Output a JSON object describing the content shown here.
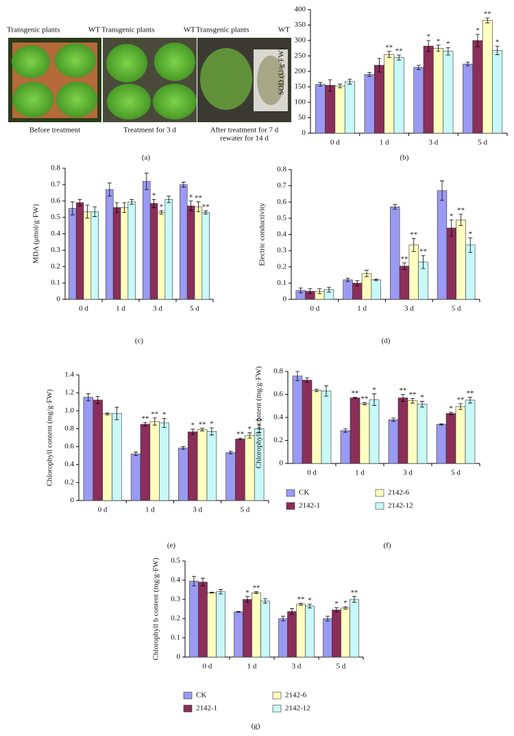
{
  "panel_a": {
    "label": "(a)",
    "photos": [
      {
        "left": "Transgenic plants",
        "right": "WT",
        "caption": [
          "Before treatment"
        ]
      },
      {
        "left": "Transgenic plants",
        "right": "WT",
        "caption": [
          "Treatment for 3 d"
        ]
      },
      {
        "left": "Transgenic plants",
        "right": "WT",
        "caption": [
          "After treatment for 7 d",
          "rewater for 14 d"
        ]
      }
    ]
  },
  "chart_data": [
    {
      "type": "bar",
      "label": "(b)",
      "y_label": "SOD (U/g·FW)",
      "categories": [
        "0 d",
        "1 d",
        "3 d",
        "5 d"
      ],
      "ylim": [
        0,
        400
      ],
      "yticks": [
        0,
        50,
        100,
        150,
        200,
        250,
        300,
        350,
        400
      ],
      "series": [
        {
          "name": "CK",
          "color": "#9a9af2",
          "values": [
            158,
            190,
            213,
            224
          ],
          "errors": [
            6,
            6,
            7,
            6
          ],
          "stars": [
            null,
            null,
            null,
            null
          ]
        },
        {
          "name": "2142-1",
          "color": "#8b2e5a",
          "values": [
            155,
            220,
            282,
            300
          ],
          "errors": [
            18,
            22,
            18,
            20
          ],
          "stars": [
            null,
            null,
            "*",
            "*"
          ]
        },
        {
          "name": "2142-6",
          "color": "#ffffc0",
          "values": [
            153,
            255,
            275,
            365
          ],
          "errors": [
            6,
            10,
            10,
            8
          ],
          "stars": [
            null,
            "**",
            "*",
            "**"
          ]
        },
        {
          "name": "2142-12",
          "color": "#c8f8f8",
          "values": [
            167,
            245,
            265,
            268
          ],
          "errors": [
            8,
            8,
            12,
            14
          ],
          "stars": [
            null,
            "**",
            "*",
            "*"
          ]
        }
      ]
    },
    {
      "type": "bar",
      "label": "(c)",
      "y_label": "MDA (μmol/g·FW)",
      "categories": [
        "0 d",
        "1 d",
        "3 d",
        "5 d"
      ],
      "ylim": [
        0,
        0.8
      ],
      "yticks": [
        0,
        0.1,
        0.2,
        0.3,
        0.4,
        0.5,
        0.6,
        0.7,
        0.8
      ],
      "series": [
        {
          "name": "CK",
          "color": "#9a9af2",
          "values": [
            0.555,
            0.67,
            0.72,
            0.7
          ],
          "errors": [
            0.04,
            0.04,
            0.05,
            0.015
          ],
          "stars": [
            null,
            null,
            null,
            null
          ]
        },
        {
          "name": "2142-1",
          "color": "#8b2e5a",
          "values": [
            0.59,
            0.56,
            0.585,
            0.57
          ],
          "errors": [
            0.02,
            0.03,
            0.025,
            0.03
          ],
          "stars": [
            null,
            null,
            "*",
            "*"
          ]
        },
        {
          "name": "2142-6",
          "color": "#ffffc0",
          "values": [
            0.535,
            0.56,
            0.53,
            0.565
          ],
          "errors": [
            0.04,
            0.03,
            0.01,
            0.03
          ],
          "stars": [
            null,
            null,
            "*",
            "**"
          ]
        },
        {
          "name": "2142-12",
          "color": "#c8f8f8",
          "values": [
            0.535,
            0.595,
            0.61,
            0.53
          ],
          "errors": [
            0.03,
            0.015,
            0.02,
            0.01
          ],
          "stars": [
            null,
            null,
            null,
            "**"
          ]
        }
      ]
    },
    {
      "type": "bar",
      "label": "(d)",
      "y_label": "Electric conductivity",
      "categories": [
        "0 d",
        "1 d",
        "3 d",
        "5 d"
      ],
      "ylim": [
        0,
        0.8
      ],
      "yticks": [
        0,
        0.1,
        0.2,
        0.3,
        0.4,
        0.5,
        0.6,
        0.7,
        0.8
      ],
      "series": [
        {
          "name": "CK",
          "color": "#9a9af2",
          "values": [
            0.055,
            0.12,
            0.57,
            0.67
          ],
          "errors": [
            0.015,
            0.01,
            0.015,
            0.06
          ],
          "stars": [
            null,
            null,
            null,
            null
          ]
        },
        {
          "name": "2142-1",
          "color": "#8b2e5a",
          "values": [
            0.05,
            0.1,
            0.205,
            0.44
          ],
          "errors": [
            0.015,
            0.015,
            0.02,
            0.05
          ],
          "stars": [
            null,
            null,
            "**",
            "*"
          ]
        },
        {
          "name": "2142-6",
          "color": "#ffffc0",
          "values": [
            0.05,
            0.16,
            0.335,
            0.49
          ],
          "errors": [
            0.015,
            0.02,
            0.04,
            0.035
          ],
          "stars": [
            null,
            null,
            "**",
            "**"
          ]
        },
        {
          "name": "2142-12",
          "color": "#c8f8f8",
          "values": [
            0.06,
            0.12,
            0.23,
            0.335
          ],
          "errors": [
            0.015,
            0.005,
            0.04,
            0.045
          ],
          "stars": [
            null,
            null,
            "**",
            "*"
          ]
        }
      ]
    },
    {
      "type": "bar",
      "label": "(e)",
      "y_label": "Chlorophyll content (mg/g·FW)",
      "categories": [
        "0 d",
        "1 d",
        "3 d",
        "5 d"
      ],
      "ylim": [
        0,
        1.4
      ],
      "yticks": [
        0,
        0.2,
        0.4,
        0.6,
        0.8,
        {
          "value": 1,
          "label": "1.0"
        },
        1.2,
        1.4
      ],
      "series": [
        {
          "name": "CK",
          "color": "#9a9af2",
          "values": [
            1.15,
            0.52,
            0.585,
            0.535
          ],
          "errors": [
            0.04,
            0.02,
            0.015,
            0.015
          ],
          "stars": [
            null,
            null,
            null,
            null
          ]
        },
        {
          "name": "2142-1",
          "color": "#8b2e5a",
          "values": [
            1.12,
            0.85,
            0.765,
            0.685
          ],
          "errors": [
            0.04,
            0.02,
            0.03,
            0.01
          ],
          "stars": [
            null,
            "**",
            "*",
            "**"
          ]
        },
        {
          "name": "2142-6",
          "color": "#ffffc0",
          "values": [
            0.965,
            0.88,
            0.79,
            0.725
          ],
          "errors": [
            0.01,
            0.04,
            0.015,
            0.03
          ],
          "stars": [
            null,
            "**",
            "**",
            "*"
          ]
        },
        {
          "name": "2142-12",
          "color": "#c8f8f8",
          "values": [
            0.97,
            0.865,
            0.77,
            0.8
          ],
          "errors": [
            0.07,
            0.05,
            0.04,
            0.04
          ],
          "stars": [
            null,
            "*",
            "*",
            "**"
          ]
        }
      ]
    },
    {
      "type": "bar",
      "label": "(f)",
      "y_label": "Chlorophyll a content (mg/g·FW)",
      "categories": [
        "0 d",
        "1 d",
        "3 d",
        "5 d"
      ],
      "ylim": [
        0,
        0.8
      ],
      "yticks": [
        0,
        0.2,
        0.4,
        0.6,
        0.8
      ],
      "legend": "bottom",
      "series": [
        {
          "name": "CK",
          "color": "#9a9af2",
          "values": [
            0.76,
            0.285,
            0.38,
            0.34
          ],
          "errors": [
            0.04,
            0.015,
            0.015,
            0.005
          ],
          "stars": [
            null,
            null,
            null,
            null
          ]
        },
        {
          "name": "2142-1",
          "color": "#8b2e5a",
          "values": [
            0.725,
            0.57,
            0.57,
            0.435
          ],
          "errors": [
            0.02,
            0.005,
            0.03,
            0.01
          ],
          "stars": [
            null,
            "**",
            "**",
            "*"
          ]
        },
        {
          "name": "2142-6",
          "color": "#ffffc0",
          "values": [
            0.635,
            0.52,
            0.545,
            0.495
          ],
          "errors": [
            0.01,
            0.01,
            0.02,
            0.025
          ],
          "stars": [
            null,
            "**",
            "**",
            "**"
          ]
        },
        {
          "name": "2142-12",
          "color": "#c8f8f8",
          "values": [
            0.63,
            0.555,
            0.515,
            0.55
          ],
          "errors": [
            0.045,
            0.05,
            0.025,
            0.025
          ],
          "stars": [
            null,
            "*",
            "*",
            "**"
          ]
        }
      ]
    },
    {
      "type": "bar",
      "label": "(g)",
      "y_label": "Chlorophyll b content (mg/g·FW)",
      "categories": [
        "0 d",
        "1 d",
        "3 d",
        "5 d"
      ],
      "ylim": [
        0,
        0.5
      ],
      "yticks": [
        0,
        0.1,
        0.2,
        0.3,
        0.4,
        0.5
      ],
      "legend": "bottom",
      "series": [
        {
          "name": "CK",
          "color": "#9a9af2",
          "values": [
            0.395,
            0.235,
            0.2,
            0.2
          ],
          "errors": [
            0.025,
            0.002,
            0.012,
            0.012
          ],
          "stars": [
            null,
            null,
            null,
            null
          ]
        },
        {
          "name": "2142-1",
          "color": "#8b2e5a",
          "values": [
            0.39,
            0.3,
            0.237,
            0.245
          ],
          "errors": [
            0.02,
            0.015,
            0.015,
            0.012
          ],
          "stars": [
            null,
            "*",
            null,
            "*"
          ]
        },
        {
          "name": "2142-6",
          "color": "#ffffc0",
          "values": [
            0.335,
            0.335,
            0.275,
            0.255
          ],
          "errors": [
            0.002,
            0.005,
            0.005,
            0.006
          ],
          "stars": [
            null,
            "**",
            "**",
            "*"
          ]
        },
        {
          "name": "2142-12",
          "color": "#c8f8f8",
          "values": [
            0.34,
            0.292,
            0.265,
            0.3
          ],
          "errors": [
            0.012,
            0.012,
            0.01,
            0.015
          ],
          "stars": [
            null,
            null,
            "*",
            "**"
          ]
        }
      ]
    }
  ]
}
